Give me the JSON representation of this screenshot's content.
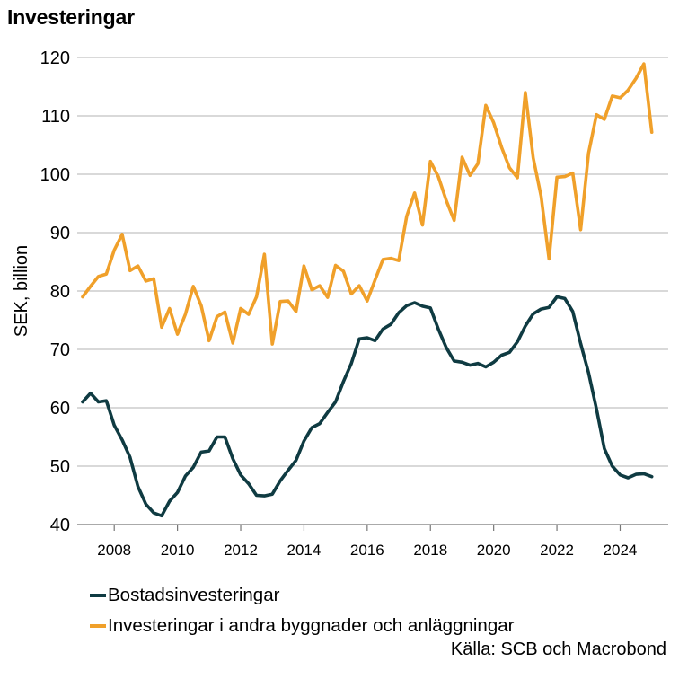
{
  "chart_data": {
    "type": "line",
    "title": "Investeringar",
    "xlabel": "",
    "ylabel": "SEK, billion",
    "xlim": [
      2007,
      2025.35
    ],
    "ylim": [
      40,
      120
    ],
    "xticks": [
      "2008",
      "2010",
      "2012",
      "2014",
      "2016",
      "2018",
      "2020",
      "2022",
      "2024"
    ],
    "yticks": [
      "40",
      "50",
      "60",
      "70",
      "80",
      "90",
      "100",
      "110",
      "120"
    ],
    "grid": "horizontal",
    "legend_position": "bottom",
    "source": "Källa: SCB och Macrobond",
    "series": [
      {
        "name": "Bostadsinvesteringar",
        "color": "#0f3b42",
        "x": [
          2007.0,
          2007.25,
          2007.5,
          2007.75,
          2008.0,
          2008.25,
          2008.5,
          2008.75,
          2009.0,
          2009.25,
          2009.5,
          2009.75,
          2010.0,
          2010.25,
          2010.5,
          2010.75,
          2011.0,
          2011.25,
          2011.5,
          2011.75,
          2012.0,
          2012.25,
          2012.5,
          2012.75,
          2013.0,
          2013.25,
          2013.5,
          2013.75,
          2014.0,
          2014.25,
          2014.5,
          2014.75,
          2015.0,
          2015.25,
          2015.5,
          2015.75,
          2016.0,
          2016.25,
          2016.5,
          2016.75,
          2017.0,
          2017.25,
          2017.5,
          2017.75,
          2018.0,
          2018.25,
          2018.5,
          2018.75,
          2019.0,
          2019.25,
          2019.5,
          2019.75,
          2020.0,
          2020.25,
          2020.5,
          2020.75,
          2021.0,
          2021.25,
          2021.5,
          2021.75,
          2022.0,
          2022.25,
          2022.5,
          2022.75,
          2023.0,
          2023.25,
          2023.5,
          2023.75,
          2024.0,
          2024.25,
          2024.5,
          2024.75,
          2025.0
        ],
        "values": [
          61,
          62.5,
          61,
          61.2,
          57,
          54.5,
          51.5,
          46.5,
          43.5,
          42,
          41.5,
          44,
          45.5,
          48.3,
          49.8,
          52.4,
          52.6,
          55,
          55,
          51.3,
          48.5,
          47,
          45,
          44.9,
          45.2,
          47.5,
          49.3,
          51,
          54.3,
          56.6,
          57.3,
          59.2,
          61,
          64.5,
          67.6,
          71.8,
          72,
          71.5,
          73.5,
          74.3,
          76.3,
          77.5,
          78,
          77.4,
          77.1,
          73.5,
          70.3,
          68,
          67.8,
          67.3,
          67.6,
          67,
          67.8,
          69,
          69.5,
          71.3,
          74,
          76.1,
          76.9,
          77.2,
          79,
          78.7,
          76.5,
          71,
          66,
          59.8,
          53,
          50,
          48.5,
          48,
          48.6,
          48.7,
          48.2
        ]
      },
      {
        "name": "Investeringar i andra byggnader och anläggningar",
        "color": "#f0a02a",
        "x": [
          2007.0,
          2007.25,
          2007.5,
          2007.75,
          2008.0,
          2008.25,
          2008.5,
          2008.75,
          2009.0,
          2009.25,
          2009.5,
          2009.75,
          2010.0,
          2010.25,
          2010.5,
          2010.75,
          2011.0,
          2011.25,
          2011.5,
          2011.75,
          2012.0,
          2012.25,
          2012.5,
          2012.75,
          2013.0,
          2013.25,
          2013.5,
          2013.75,
          2014.0,
          2014.25,
          2014.5,
          2014.75,
          2015.0,
          2015.25,
          2015.5,
          2015.75,
          2016.0,
          2016.25,
          2016.5,
          2016.75,
          2017.0,
          2017.25,
          2017.5,
          2017.75,
          2018.0,
          2018.25,
          2018.5,
          2018.75,
          2019.0,
          2019.25,
          2019.5,
          2019.75,
          2020.0,
          2020.25,
          2020.5,
          2020.75,
          2021.0,
          2021.25,
          2021.5,
          2021.75,
          2022.0,
          2022.25,
          2022.5,
          2022.75,
          2023.0,
          2023.25,
          2023.5,
          2023.75,
          2024.0,
          2024.25,
          2024.5,
          2024.75,
          2025.0
        ],
        "values": [
          79,
          80.8,
          82.5,
          82.9,
          87,
          89.7,
          83.5,
          84.3,
          81.7,
          82.1,
          73.8,
          77,
          72.6,
          76,
          80.8,
          77.5,
          71.5,
          75.6,
          76.4,
          71.1,
          77,
          76,
          79,
          86.3,
          70.9,
          78.2,
          78.3,
          76.5,
          84.3,
          80.2,
          80.9,
          78.9,
          84.4,
          83.4,
          79.5,
          80.9,
          78.3,
          81.9,
          85.4,
          85.6,
          85.2,
          92.8,
          96.8,
          91.3,
          102.2,
          99.6,
          95.5,
          92.1,
          102.9,
          99.8,
          101.8,
          111.8,
          108.8,
          104.6,
          101.1,
          99.4,
          114,
          102.8,
          96.2,
          85.5,
          99.5,
          99.6,
          100.2,
          90.5,
          103.6,
          110.2,
          109.4,
          113.4,
          113.1,
          114.4,
          116.4,
          118.9,
          107.2
        ]
      }
    ]
  }
}
